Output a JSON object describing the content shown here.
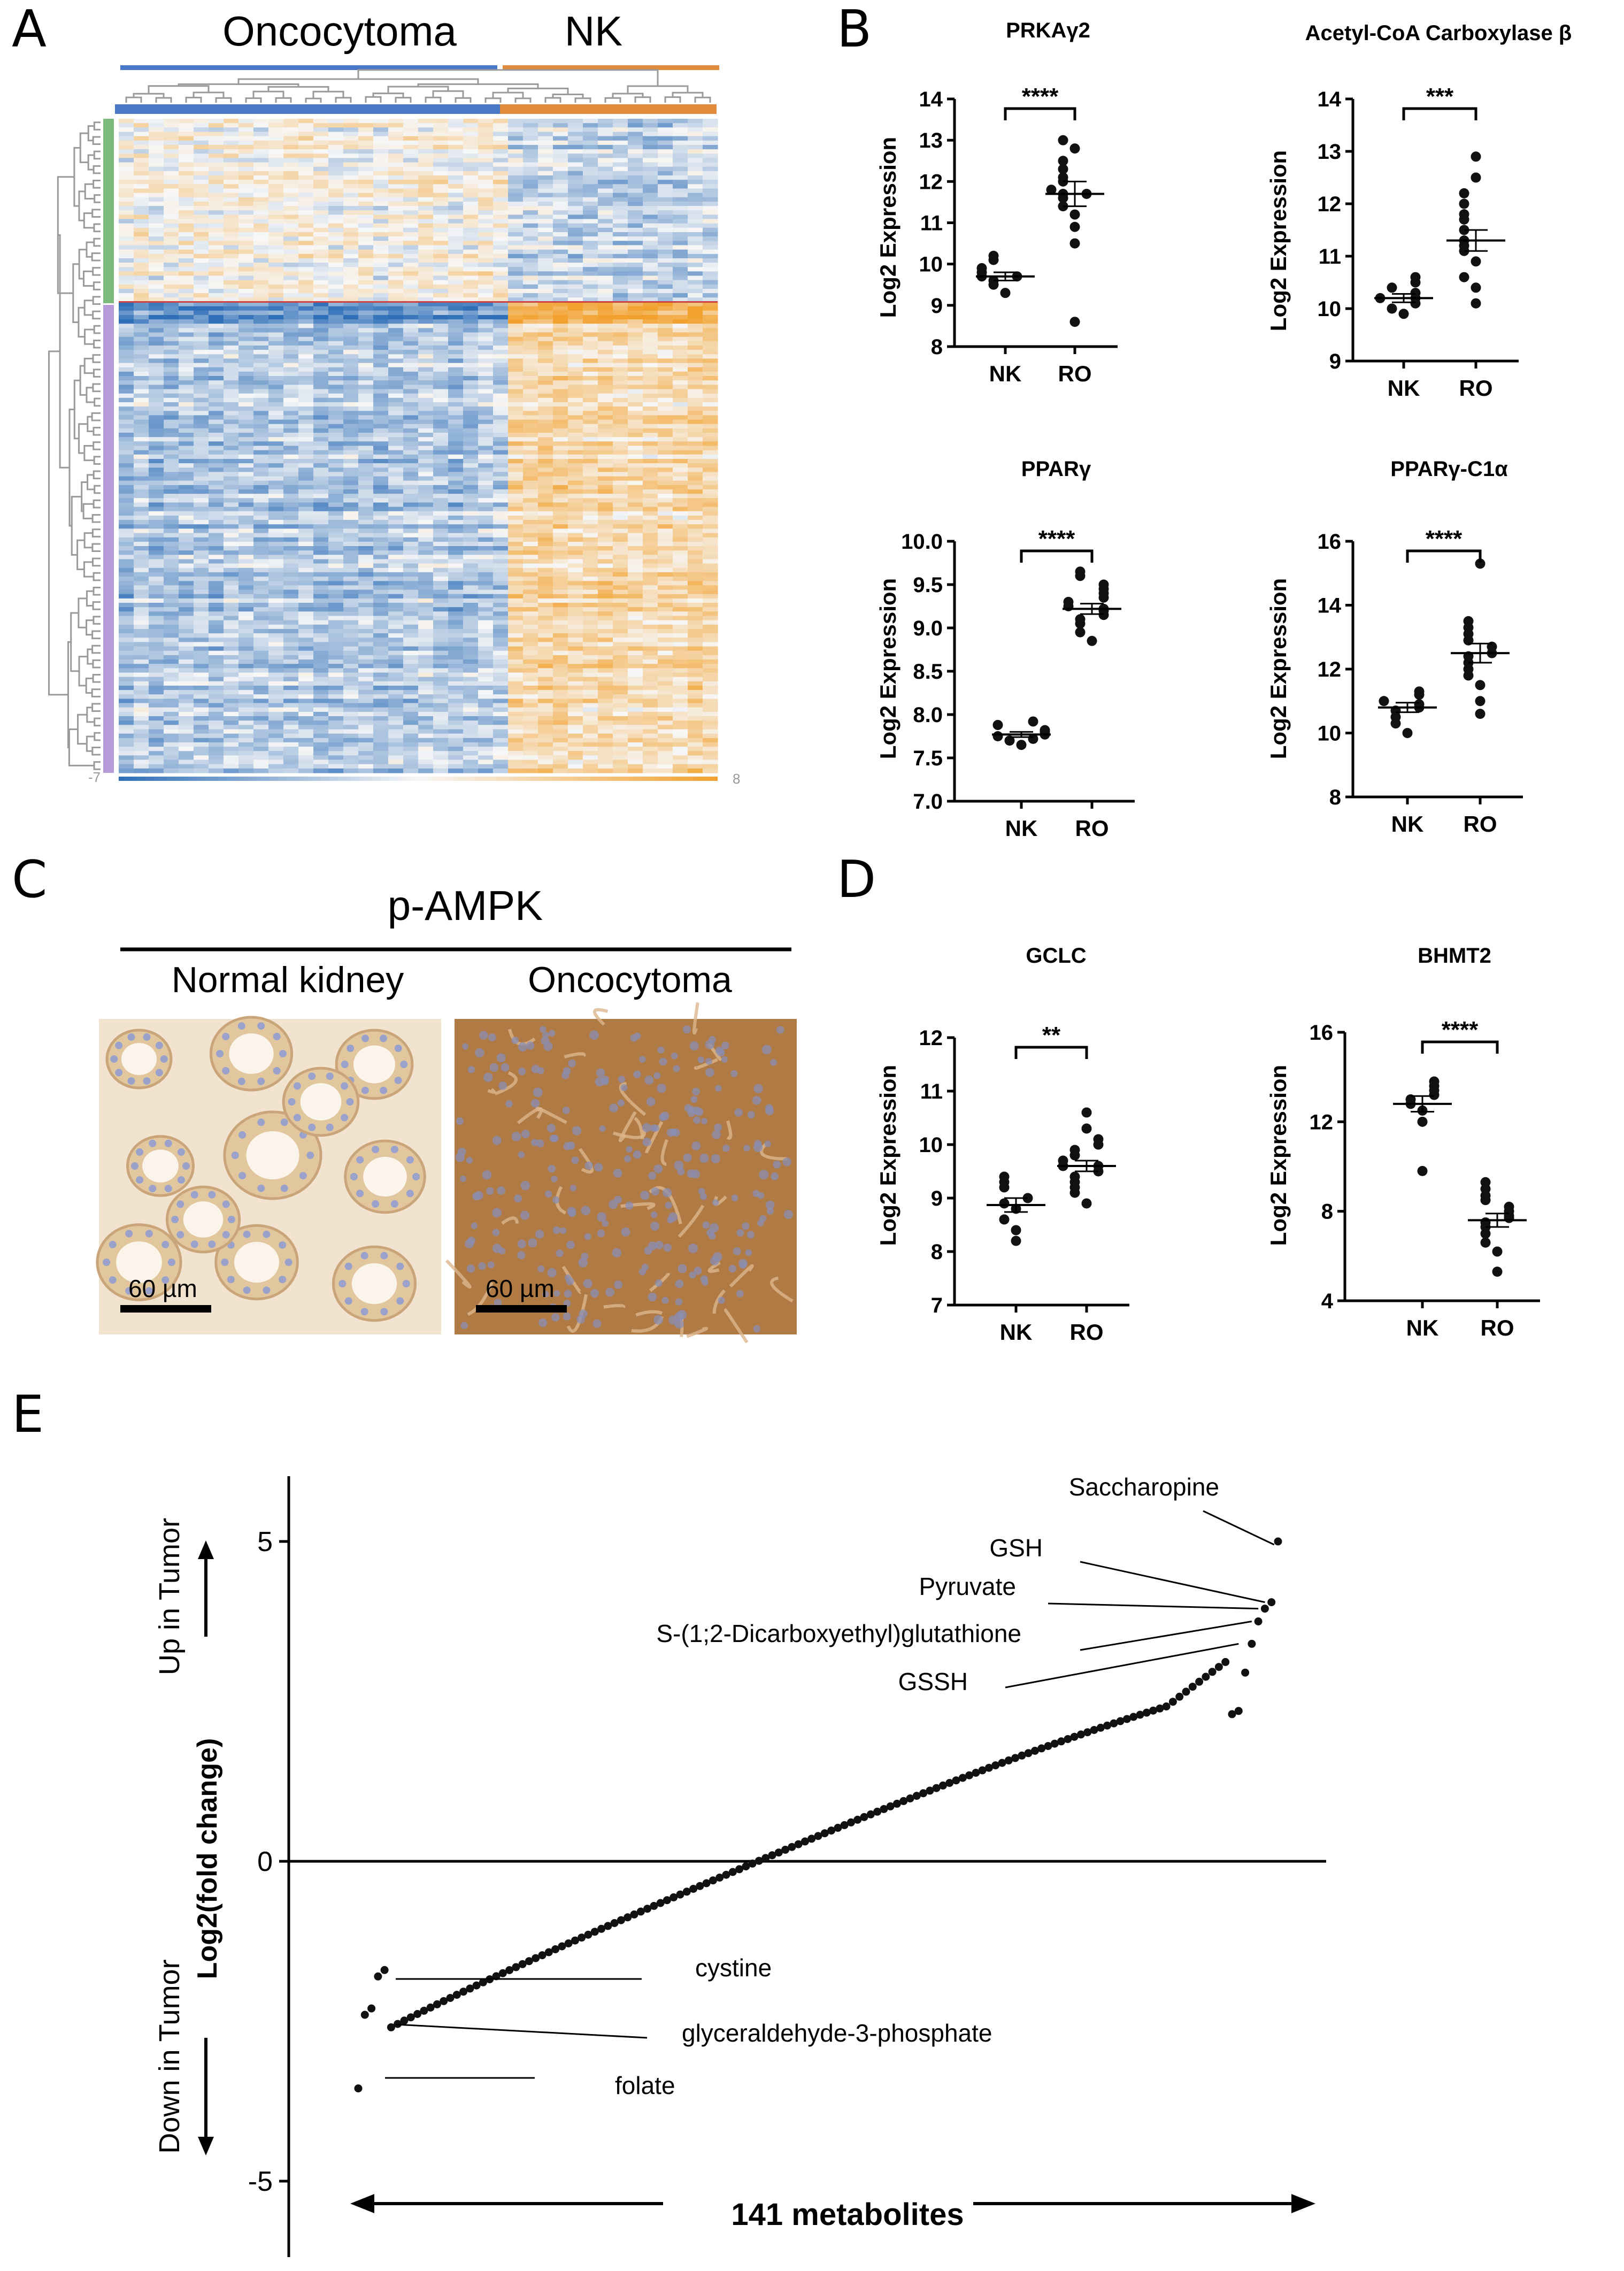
{
  "panels": {
    "a": "A",
    "b": "B",
    "c": "C",
    "d": "D",
    "e": "E"
  },
  "heatmap": {
    "group_left": "Oncocytoma",
    "group_right": "NK",
    "scale_min": "-7",
    "scale_max": "8",
    "colors": {
      "low": "#2f6fb8",
      "mid": "#f7f7f7",
      "high": "#f2a12e",
      "onco_bar": "#4a78c8",
      "nk_bar": "#e08a3c",
      "cluster1": "#7dbb7d",
      "cluster2": "#b79ad8"
    }
  },
  "colors": {
    "points": "#111111",
    "axis": "#000000"
  },
  "panel_c": {
    "title": "p-AMPK",
    "left_label": "Normal kidney",
    "right_label": "Oncocytoma",
    "scale_left": "60 µm",
    "scale_right": "60 µm",
    "colors": {
      "normal_bg": "#f1e3cf",
      "onco_bg": "#b07a45"
    }
  },
  "chart_data": [
    {
      "id": "prkag2",
      "type": "scatter",
      "title": "PRKAγ2",
      "ylabel": "Log2 Expression",
      "categories": [
        "NK",
        "RO"
      ],
      "ylim": [
        8,
        14
      ],
      "yticks": [
        "8",
        "9",
        "10",
        "11",
        "12",
        "13",
        "14"
      ],
      "series": [
        {
          "name": "NK",
          "values": [
            9.3,
            9.5,
            9.6,
            9.7,
            9.7,
            9.8,
            9.9,
            10.1,
            10.2
          ],
          "mean": 9.7,
          "sem": 0.1
        },
        {
          "name": "RO",
          "values": [
            8.6,
            10.5,
            10.9,
            11.2,
            11.4,
            11.6,
            11.7,
            11.7,
            11.8,
            12.0,
            12.1,
            12.3,
            12.5,
            12.8,
            13.0
          ],
          "mean": 11.7,
          "sem": 0.3
        }
      ],
      "significance": "****"
    },
    {
      "id": "accb",
      "type": "scatter",
      "title": "Acetyl-CoA Carboxylase β",
      "ylabel": "Log2 Expression",
      "categories": [
        "NK",
        "RO"
      ],
      "ylim": [
        9,
        14
      ],
      "yticks": [
        "9",
        "10",
        "11",
        "12",
        "13",
        "14"
      ],
      "series": [
        {
          "name": "NK",
          "values": [
            9.9,
            10.0,
            10.1,
            10.2,
            10.2,
            10.3,
            10.4,
            10.5,
            10.6
          ],
          "mean": 10.2,
          "sem": 0.08
        },
        {
          "name": "RO",
          "values": [
            10.1,
            10.4,
            10.6,
            10.9,
            11.1,
            11.2,
            11.3,
            11.5,
            11.7,
            11.8,
            12.0,
            12.2,
            12.5,
            12.9
          ],
          "mean": 11.3,
          "sem": 0.2
        },
        {
          "name": "",
          "values": []
        }
      ],
      "significance": "***"
    },
    {
      "id": "pparg",
      "type": "scatter",
      "title": "PPARγ",
      "ylabel": "Log2 Expression",
      "categories": [
        "NK",
        "RO"
      ],
      "ylim": [
        7.0,
        10.0
      ],
      "yticks": [
        "7.0",
        "7.5",
        "8.0",
        "8.5",
        "9.0",
        "9.5",
        "10.0"
      ],
      "series": [
        {
          "name": "NK",
          "values": [
            7.65,
            7.7,
            7.72,
            7.75,
            7.77,
            7.8,
            7.82,
            7.88,
            7.92
          ],
          "mean": 7.77,
          "sem": 0.03
        },
        {
          "name": "RO",
          "values": [
            8.85,
            8.95,
            9.05,
            9.1,
            9.15,
            9.2,
            9.22,
            9.25,
            9.3,
            9.35,
            9.4,
            9.45,
            9.5,
            9.6,
            9.65
          ],
          "mean": 9.22,
          "sem": 0.06
        }
      ],
      "significance": "****"
    },
    {
      "id": "ppargc1a",
      "type": "scatter",
      "title": "PPARγ-C1α",
      "ylabel": "Log2 Expression",
      "categories": [
        "NK",
        "RO"
      ],
      "ylim": [
        8,
        16
      ],
      "yticks": [
        "8",
        "10",
        "12",
        "14",
        "16"
      ],
      "series": [
        {
          "name": "NK",
          "values": [
            10.0,
            10.3,
            10.5,
            10.7,
            10.8,
            10.9,
            11.0,
            11.2,
            11.3
          ],
          "mean": 10.8,
          "sem": 0.15
        },
        {
          "name": "RO",
          "values": [
            10.6,
            11.0,
            11.5,
            11.8,
            12.0,
            12.2,
            12.4,
            12.5,
            12.7,
            12.9,
            13.1,
            13.3,
            13.5,
            15.3
          ],
          "mean": 12.5,
          "sem": 0.3
        }
      ],
      "significance": "****"
    },
    {
      "id": "gclc",
      "type": "scatter",
      "title": "GCLC",
      "ylabel": "Log2 Expression",
      "categories": [
        "NK",
        "RO"
      ],
      "ylim": [
        7,
        12
      ],
      "yticks": [
        "7",
        "8",
        "9",
        "10",
        "11",
        "12"
      ],
      "series": [
        {
          "name": "NK",
          "values": [
            8.2,
            8.4,
            8.6,
            8.8,
            8.9,
            9.0,
            9.2,
            9.3,
            9.4
          ],
          "mean": 8.87,
          "sem": 0.13
        },
        {
          "name": "RO",
          "values": [
            8.9,
            9.1,
            9.2,
            9.3,
            9.4,
            9.5,
            9.6,
            9.6,
            9.7,
            9.8,
            9.9,
            10.0,
            10.1,
            10.3,
            10.6
          ],
          "mean": 9.6,
          "sem": 0.1
        }
      ],
      "significance": "**"
    },
    {
      "id": "bhmt2",
      "type": "scatter",
      "title": "BHMT2",
      "ylabel": "Log2 Expression",
      "categories": [
        "NK",
        "RO"
      ],
      "ylim": [
        4,
        16
      ],
      "yticks": [
        "4",
        "8",
        "12",
        "16"
      ],
      "series": [
        {
          "name": "NK",
          "values": [
            9.8,
            12.0,
            12.5,
            12.8,
            13.0,
            13.2,
            13.4,
            13.6,
            13.8
          ],
          "mean": 12.8,
          "sem": 0.35
        },
        {
          "name": "RO",
          "values": [
            5.3,
            6.2,
            6.6,
            7.0,
            7.3,
            7.5,
            7.7,
            7.8,
            8.0,
            8.2,
            8.5,
            8.7,
            9.0,
            9.3
          ],
          "mean": 7.6,
          "sem": 0.3
        }
      ],
      "significance": "****"
    },
    {
      "id": "metabolites",
      "type": "scatter",
      "title": "",
      "ylabel": "Log2(fold change)",
      "ylim": [
        -6,
        6
      ],
      "yticks": [
        "5",
        "0",
        "-5"
      ],
      "n": 141,
      "x_label": "141 metabolites",
      "arrow_up": "Up in Tumor",
      "arrow_down": "Down in Tumor",
      "labels_top": [
        "Saccharopine",
        "GSH",
        "Pyruvate",
        "S-(1;2-Dicarboxyethyl)glutathione",
        "GSSH"
      ],
      "labels_bottom": [
        "cystine",
        "glyceraldehyde-3-phosphate",
        "folate"
      ],
      "extremes_low": [
        -3.55,
        -2.4,
        -2.3,
        -1.8,
        -1.7
      ],
      "extremes_high": [
        2.3,
        2.35,
        2.95,
        3.4,
        3.75,
        3.95,
        4.05,
        5.0
      ]
    }
  ]
}
